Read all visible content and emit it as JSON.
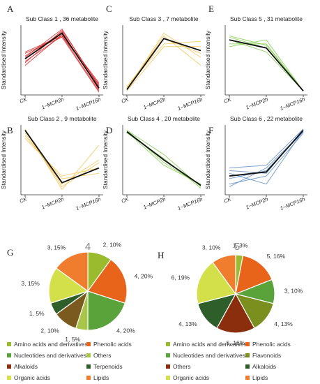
{
  "colors": {
    "red": "#d7191c",
    "yellow": "#f2c14e",
    "green": "#7ac943",
    "blue": "#4f81bd",
    "mean": "#111111"
  },
  "chart_data": [
    {
      "type": "line",
      "letter": "A",
      "title": "Sub Class  1  , 36 metabolite",
      "ylabel": "Standardised Intensity",
      "categories": [
        "CK",
        "1~MCP2h",
        "1~MCP16h"
      ],
      "color": "red",
      "series": [
        {
          "values": [
            0.15,
            1.0,
            -1.05
          ]
        },
        {
          "values": [
            -0.1,
            1.1,
            -0.95
          ]
        },
        {
          "values": [
            0.3,
            0.9,
            -1.15
          ]
        },
        {
          "values": [
            0.05,
            1.05,
            -1.1
          ]
        },
        {
          "values": [
            -0.2,
            0.95,
            -0.85
          ]
        },
        {
          "values": [
            0.25,
            0.85,
            -1.2
          ]
        },
        {
          "values": [
            0.1,
            1.15,
            -1.0
          ]
        },
        {
          "values": [
            -0.05,
            0.9,
            -0.9
          ]
        }
      ],
      "mean": [
        0.05,
        1.0,
        -1.05
      ]
    },
    {
      "type": "line",
      "letter": "C",
      "title": "Sub Class  3  , 7 metabolite",
      "ylabel": "Standardised Intensity",
      "categories": [
        "CK",
        "1~MCP2h",
        "1~MCP16h"
      ],
      "color": "yellow",
      "series": [
        {
          "values": [
            -1.1,
            1.0,
            0.1
          ]
        },
        {
          "values": [
            -1.0,
            0.6,
            0.7
          ]
        },
        {
          "values": [
            -1.05,
            0.9,
            -0.2
          ]
        },
        {
          "values": [
            -1.15,
            0.5,
            0.5
          ]
        },
        {
          "values": [
            -1.0,
            0.8,
            0.25
          ]
        }
      ],
      "mean": [
        -1.1,
        0.8,
        0.35
      ]
    },
    {
      "type": "line",
      "letter": "E",
      "title": "Sub Class  5  , 31 metabolite",
      "ylabel": "Standardised Intensity",
      "categories": [
        "CK",
        "1~MCP2h",
        "1~MCP16h"
      ],
      "color": "green",
      "series": [
        {
          "values": [
            0.9,
            0.55,
            -1.15
          ]
        },
        {
          "values": [
            0.5,
            0.75,
            -1.15
          ]
        },
        {
          "values": [
            0.75,
            0.3,
            -1.15
          ]
        },
        {
          "values": [
            0.6,
            0.6,
            -1.15
          ]
        },
        {
          "values": [
            0.85,
            0.45,
            -1.15
          ]
        }
      ],
      "mean": [
        0.75,
        0.45,
        -1.15
      ]
    },
    {
      "type": "line",
      "letter": "B",
      "title": "Sub Class  2  , 9 metabolite",
      "ylabel": "Standardised Intensity",
      "categories": [
        "CK",
        "1~MCP2h",
        "1~MCP16h"
      ],
      "color": "yellow",
      "series": [
        {
          "values": [
            1.15,
            -1.1,
            0.55
          ]
        },
        {
          "values": [
            0.9,
            -0.7,
            -0.5
          ]
        },
        {
          "values": [
            1.0,
            -0.9,
            0.0
          ]
        },
        {
          "values": [
            0.8,
            -0.6,
            -0.3
          ]
        },
        {
          "values": [
            1.1,
            -1.0,
            -0.1
          ]
        }
      ],
      "mean": [
        1.1,
        -0.85,
        -0.3
      ]
    },
    {
      "type": "line",
      "letter": "D",
      "title": "Sub Class  4  , 20 metabolite",
      "ylabel": "Standardised Intensity",
      "categories": [
        "CK",
        "1~MCP2h",
        "1~MCP16h"
      ],
      "color": "green",
      "series": [
        {
          "values": [
            1.1,
            0.2,
            -1.0
          ]
        },
        {
          "values": [
            1.05,
            -0.2,
            -0.9
          ]
        },
        {
          "values": [
            1.0,
            0.05,
            -1.05
          ]
        },
        {
          "values": [
            1.1,
            -0.1,
            -0.95
          ]
        }
      ],
      "mean": [
        1.05,
        0.0,
        -0.95
      ]
    },
    {
      "type": "line",
      "letter": "F",
      "title": "Sub Class  6  , 22 metabolite",
      "ylabel": "Standardised Intensity",
      "categories": [
        "CK",
        "1~MCP2h",
        "1~MCP16h"
      ],
      "color": "blue",
      "series": [
        {
          "values": [
            -0.4,
            -0.5,
            1.15
          ]
        },
        {
          "values": [
            -1.0,
            -0.3,
            1.05
          ]
        },
        {
          "values": [
            -0.5,
            -0.9,
            1.1
          ]
        },
        {
          "values": [
            -0.9,
            -0.6,
            1.0
          ]
        },
        {
          "values": [
            -0.3,
            -0.2,
            1.15
          ]
        },
        {
          "values": [
            -0.7,
            -0.4,
            1.05
          ]
        }
      ],
      "mean": [
        -0.6,
        -0.45,
        1.1
      ]
    },
    {
      "type": "pie",
      "letter": "G",
      "title": "4",
      "slices": [
        {
          "label": "2, 10%",
          "value": 10,
          "color": "#9bbb2e"
        },
        {
          "label": "4, 20%",
          "value": 20,
          "color": "#e8641b"
        },
        {
          "label": "4, 20%",
          "value": 20,
          "color": "#5aa33a"
        },
        {
          "label": "1, 5%",
          "value": 5,
          "color": "#a9c64a"
        },
        {
          "label": "2, 10%",
          "value": 10,
          "color": "#7a5a1e"
        },
        {
          "label": "1, 5%",
          "value": 5,
          "color": "#2e5e2a"
        },
        {
          "label": "3, 15%",
          "value": 15,
          "color": "#d4e04a"
        },
        {
          "label": "3, 15%",
          "value": 15,
          "color": "#f07d2d"
        }
      ]
    },
    {
      "type": "pie",
      "letter": "H",
      "title": "5",
      "slices": [
        {
          "label": "1, 3%",
          "value": 3,
          "color": "#9bbb2e"
        },
        {
          "label": "5, 16%",
          "value": 16,
          "color": "#e8641b"
        },
        {
          "label": "3, 10%",
          "value": 10,
          "color": "#5aa33a"
        },
        {
          "label": "4, 13%",
          "value": 13,
          "color": "#7a8f1e"
        },
        {
          "label": "5, 16%",
          "value": 16,
          "color": "#8b2e0e"
        },
        {
          "label": "4, 13%",
          "value": 13,
          "color": "#2e5e2a"
        },
        {
          "label": "6, 19%",
          "value": 19,
          "color": "#d4e04a"
        },
        {
          "label": "3, 10%",
          "value": 10,
          "color": "#f07d2d"
        }
      ]
    }
  ],
  "legend_left": [
    {
      "label": "Amino acids and derivatives",
      "color": "#9bbb2e"
    },
    {
      "label": "Phenolic acids",
      "color": "#e8641b"
    },
    {
      "label": "Nucleotides and derivatives",
      "color": "#5aa33a"
    },
    {
      "label": "Others",
      "color": "#a9c64a"
    },
    {
      "label": "Alkaloids",
      "color": "#8b2e0e"
    },
    {
      "label": "Terpenoids",
      "color": "#2e5e2a"
    },
    {
      "label": "Organic acids",
      "color": "#d4e04a"
    },
    {
      "label": "Lipids",
      "color": "#f07d2d"
    }
  ],
  "legend_right": [
    {
      "label": "Amino acids and derivatives",
      "color": "#9bbb2e"
    },
    {
      "label": "Phenolic acids",
      "color": "#e8641b"
    },
    {
      "label": "Nucleotides and derivatives",
      "color": "#5aa33a"
    },
    {
      "label": "Flavonoids",
      "color": "#7a8f1e"
    },
    {
      "label": "Others",
      "color": "#8b2e0e"
    },
    {
      "label": "Alkaloids",
      "color": "#2e5e2a"
    },
    {
      "label": "Organic acids",
      "color": "#d4e04a"
    },
    {
      "label": "Lipids",
      "color": "#f07d2d"
    }
  ]
}
